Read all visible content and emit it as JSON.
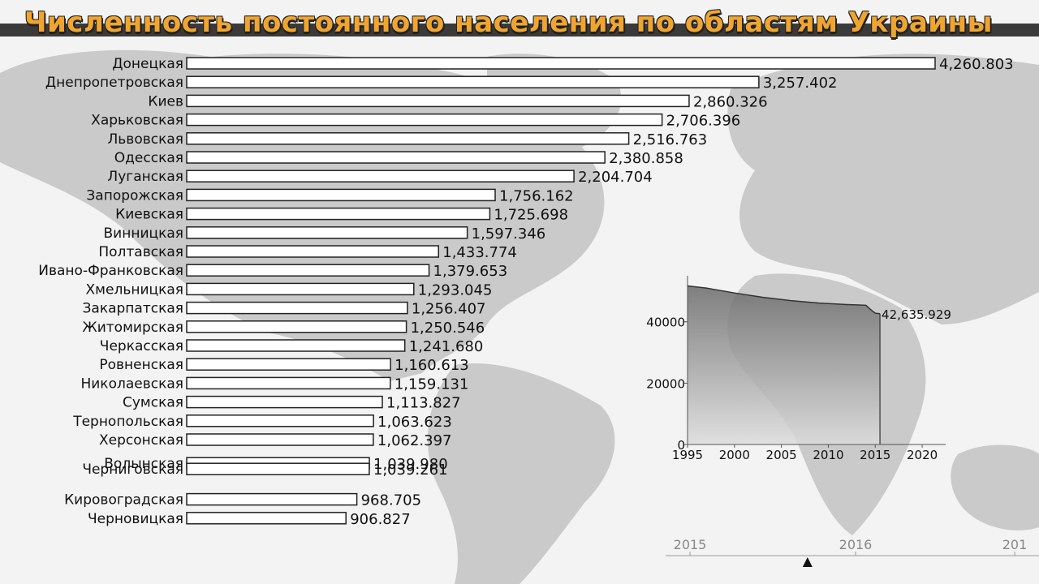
{
  "title": "Численность постоянного населения по областям Украины",
  "colors": {
    "title": "#f0a531",
    "bar_fill": "#ffffff",
    "bar_stroke": "#222222",
    "map": "#c9c9c9",
    "inset_fill_dark": "#6a6a6a",
    "inset_fill_light": "#dcdcdc"
  },
  "chart_data": [
    {
      "type": "bar",
      "orientation": "horizontal",
      "title": "",
      "categories": [
        "Донецкая",
        "Днепропетровская",
        "Киев",
        "Харьковская",
        "Львовская",
        "Одесская",
        "Луганская",
        "Запорожская",
        "Киевская",
        "Винницкая",
        "Полтавская",
        "Ивано-Франковская",
        "Хмельницкая",
        "Закарпатская",
        "Житомирская",
        "Черкасская",
        "Ровненская",
        "Николаевская",
        "Сумская",
        "Тернопольская",
        "Херсонская",
        "Волынская",
        "Черниговская",
        "Кировоградская",
        "Черновицкая"
      ],
      "values": [
        4260.803,
        3257.402,
        2860.326,
        2706.396,
        2516.763,
        2380.858,
        2204.704,
        1756.162,
        1725.698,
        1597.346,
        1433.774,
        1379.653,
        1293.045,
        1256.407,
        1250.546,
        1241.68,
        1160.613,
        1159.131,
        1113.827,
        1063.623,
        1062.397,
        1039.98,
        1039.261,
        968.705,
        906.827
      ],
      "value_labels": [
        "4,260.803",
        "3,257.402",
        "2,860.326",
        "2,706.396",
        "2,516.763",
        "2,380.858",
        "2,204.704",
        "1,756.162",
        "1,725.698",
        "1,597.346",
        "1,433.774",
        "1,379.653",
        "1,293.045",
        "1,256.407",
        "1,250.546",
        "1,241.680",
        "1,160.613",
        "1,159.131",
        "1,113.827",
        "1,063.623",
        "1,062.397",
        "1,039.980",
        "1,039.261",
        "968.705",
        "906.827"
      ],
      "xlim": [
        0,
        4260.803
      ]
    },
    {
      "type": "area",
      "title": "",
      "x": [
        1995,
        1997,
        2000,
        2003,
        2006,
        2009,
        2012,
        2013,
        2014,
        2014.5,
        2015,
        2015.5
      ],
      "values": [
        51700,
        51000,
        49400,
        48000,
        46900,
        46100,
        45600,
        45500,
        45400,
        44000,
        42800,
        42635.929
      ],
      "end_label": "42,635.929",
      "xticks": [
        "1995",
        "2000",
        "2005",
        "2010",
        "2015",
        "2020"
      ],
      "yticks": [
        "0",
        "20000",
        "40000"
      ],
      "xlim": [
        1995,
        2022.5
      ],
      "ylim": [
        0,
        55000
      ]
    }
  ],
  "timeline": {
    "labels": [
      "2015",
      "2016",
      "201"
    ],
    "current": 2015.71
  }
}
